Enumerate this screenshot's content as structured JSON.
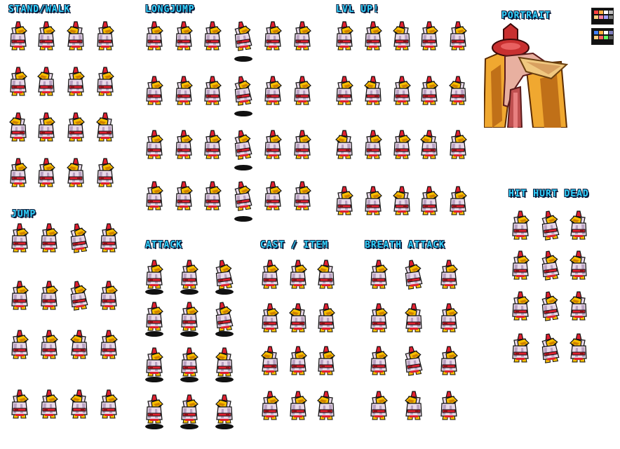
{
  "sheet": {
    "background": "#ffffff",
    "label_color": "#33d4ff",
    "label_outline": "#0b1b3a"
  },
  "sections": {
    "stand_walk": "STAND/WALK",
    "long_jump": "LONGJUMP",
    "lvl_up": "LVL UP!",
    "portrait": "PORTRAIT",
    "jump": "JUMP",
    "attack": "ATTACK",
    "cast_item": "CAST / ITEM",
    "breath_attack": "BREATH ATTACK",
    "hit_hurt_dead": "HIT HURT DEAD"
  },
  "palette": {
    "robe": "#e8d8e8",
    "robe_shade": "#b8a0c0",
    "beak": "#f8c000",
    "beak_shade": "#d08000",
    "red": "#e02030",
    "red_shade": "#901018",
    "outline": "#101010",
    "shadow": "#0a0a0a"
  },
  "portrait": {
    "icon": "bird-mage-portrait",
    "cloak": "#f0a830",
    "cloak_shade": "#c07018",
    "hat": "#c83030",
    "face": "#e8b0a0",
    "beak": "#f0c880"
  },
  "swatches": [
    [
      "#ff4040",
      "#ffb040",
      "#ffffff",
      "#c0c0c0"
    ],
    [
      "#4080ff",
      "#ffb040",
      "#ffffff",
      "#8080c0"
    ]
  ]
}
